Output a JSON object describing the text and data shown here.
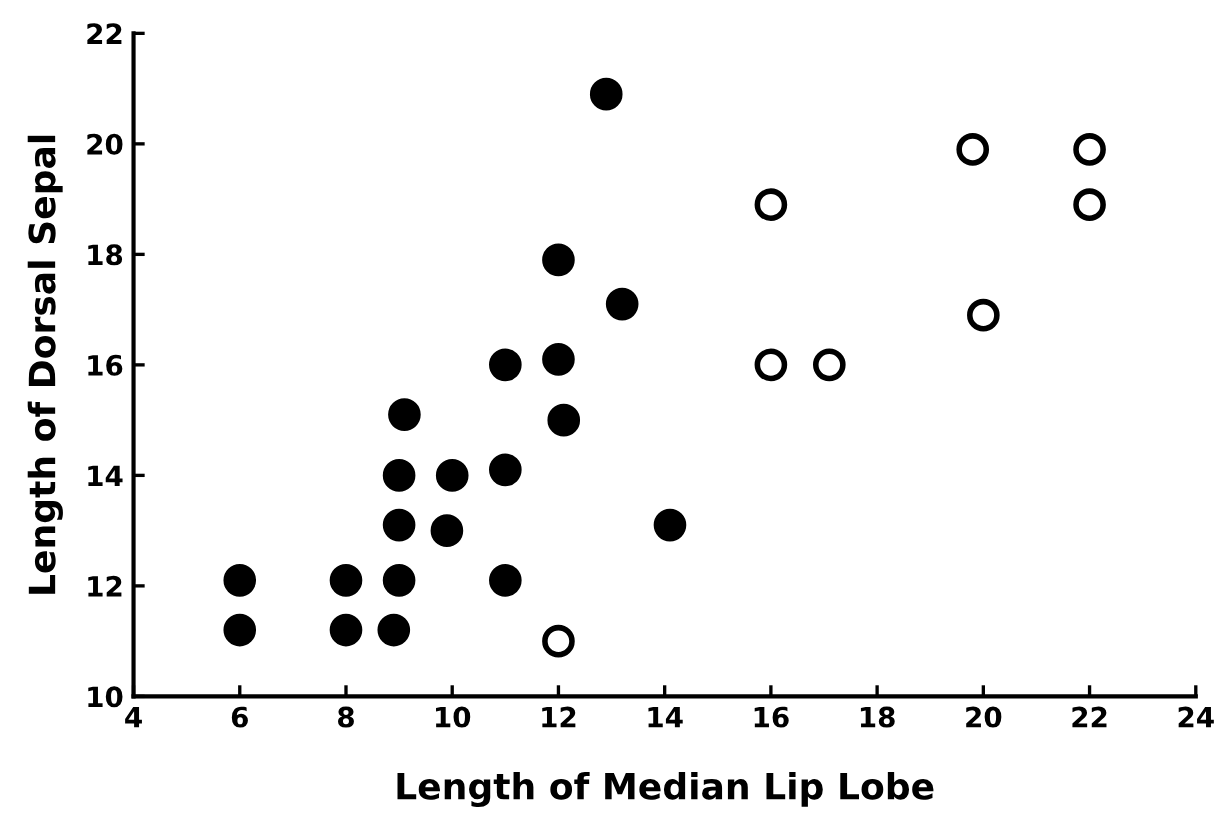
{
  "chart_data": {
    "type": "scatter",
    "xlabel": "Length of Median Lip Lobe",
    "ylabel": "Length of Dorsal Sepal",
    "xlim": [
      4,
      24
    ],
    "xticks": [
      4,
      6,
      8,
      10,
      12,
      14,
      16,
      18,
      20,
      22,
      24
    ],
    "ylim": [
      10,
      22
    ],
    "yticks": [
      10,
      12,
      14,
      16,
      18,
      20,
      22
    ],
    "grid": false,
    "legend": false,
    "marker": "circle",
    "series": [
      {
        "color": "#000000",
        "x": [
          6,
          6,
          8,
          8,
          8.9,
          9,
          9,
          9,
          9.1,
          10,
          9.9,
          11,
          11,
          11,
          12,
          12,
          12.1,
          12.9,
          13.2,
          14.1
        ],
        "values": [
          11.2,
          12.1,
          12.1,
          11.2,
          11.2,
          12.1,
          13.1,
          14,
          15.1,
          14,
          13,
          16,
          14.1,
          12.1,
          17.9,
          16.1,
          15,
          20.9,
          17.1,
          13.1
        ]
      },
      {
        "color": "#ffffff",
        "x": [
          12,
          16,
          16,
          17.1,
          19.8,
          20,
          22,
          22
        ],
        "values": [
          11,
          18.9,
          16,
          16,
          19.9,
          16.9,
          19.9,
          18.9
        ]
      }
    ]
  }
}
